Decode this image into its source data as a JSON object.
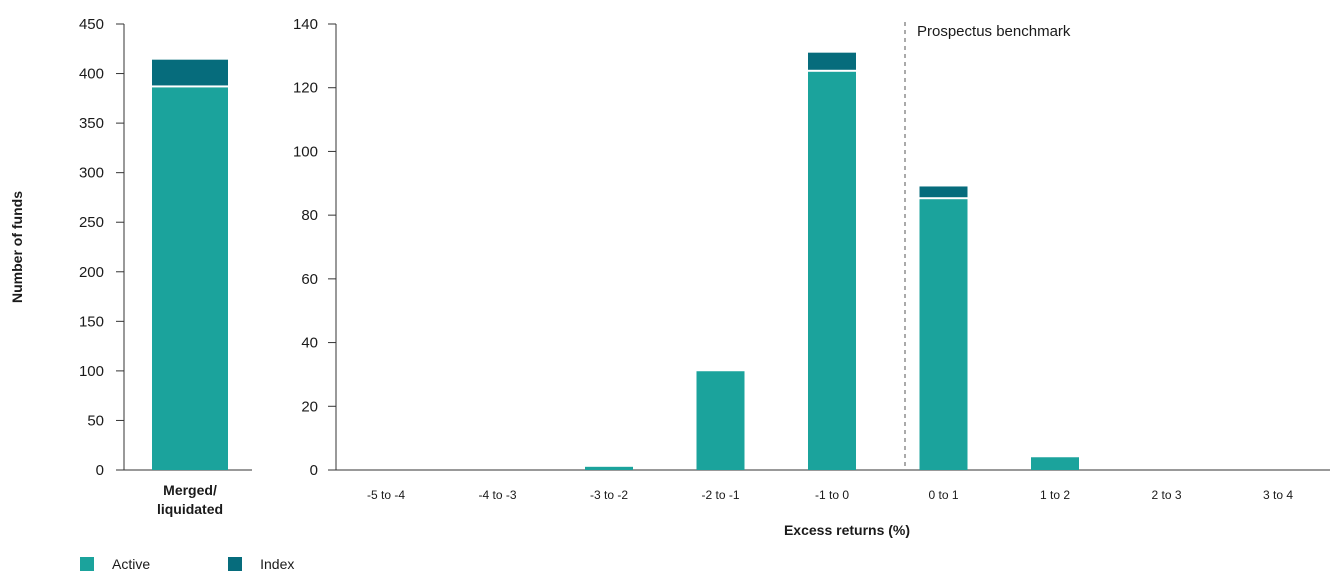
{
  "colors": {
    "active": "#1ba39c",
    "index": "#066c7c",
    "axis": "#333333"
  },
  "chart_data": [
    {
      "type": "bar",
      "stacked": true,
      "categories": [
        "Merged/\nliquidated"
      ],
      "series": [
        {
          "name": "Active",
          "values": [
            386
          ]
        },
        {
          "name": "Index",
          "values": [
            28
          ]
        }
      ],
      "ylabel": "Number of funds",
      "ylim": [
        0,
        450
      ],
      "yticks": [
        "450",
        "400",
        "350",
        "300",
        "250",
        "200",
        "150",
        "100",
        "50",
        "0"
      ]
    },
    {
      "type": "bar",
      "stacked": true,
      "categories": [
        "-5 to -4",
        "-4 to -3",
        "-3 to -2",
        "-2 to -1",
        "-1 to 0",
        "0 to 1",
        "1 to 2",
        "2 to 3",
        "3 to 4"
      ],
      "series": [
        {
          "name": "Active",
          "values": [
            0,
            0,
            1,
            31,
            125,
            85,
            4,
            0,
            0
          ]
        },
        {
          "name": "Index",
          "values": [
            0,
            0,
            0,
            0,
            6,
            4,
            0,
            0,
            0
          ]
        }
      ],
      "xlabel": "Excess returns (%)",
      "ylim": [
        0,
        140
      ],
      "yticks": [
        "140",
        "120",
        "100",
        "80",
        "60",
        "40",
        "20",
        "0"
      ],
      "annotation": "Prospectus benchmark"
    }
  ],
  "legend": [
    {
      "label": "Active",
      "color": "#1ba39c"
    },
    {
      "label": "Index",
      "color": "#066c7c"
    }
  ]
}
